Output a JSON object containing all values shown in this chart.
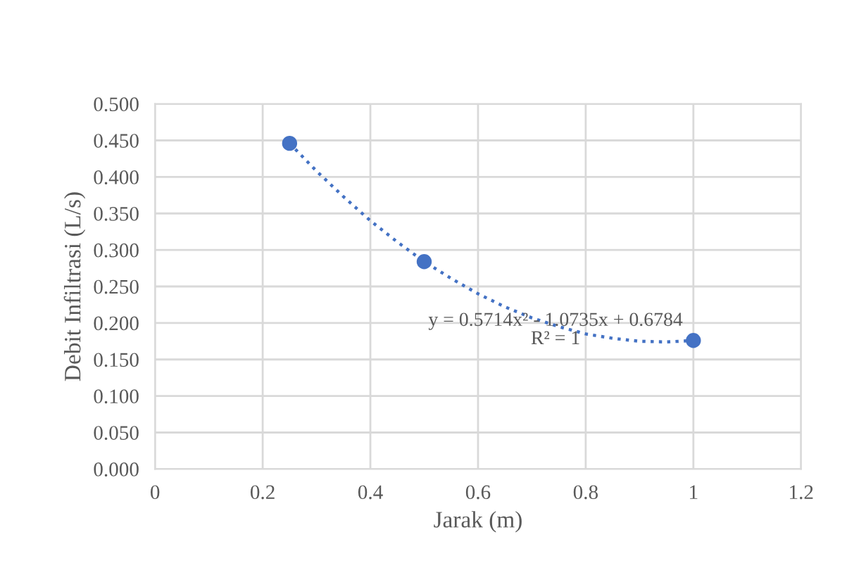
{
  "chart_data": {
    "type": "scatter",
    "xlabel": "Jarak (m)",
    "ylabel": "Debit Infiltrasi (L/s)",
    "annotations": [
      "y = 0.5714x² - 1.0735x + 0.6784",
      "R² = 1"
    ],
    "series": [
      {
        "color": "#4472c4",
        "marker": "circle",
        "x": [
          0.25,
          0.5,
          1
        ],
        "values": [
          0.446,
          0.284,
          0.176
        ]
      },
      {
        "type": "line",
        "color": "#4472c4",
        "line_style": "dotted",
        "marker": "none",
        "x": [
          0.25,
          0.3,
          0.35,
          0.4,
          0.45,
          0.5,
          0.55,
          0.6,
          0.65,
          0.7,
          0.75,
          0.8,
          0.85,
          0.9,
          0.95,
          1.0
        ],
        "values": [
          0.446,
          0.408,
          0.373,
          0.34,
          0.311,
          0.284,
          0.261,
          0.24,
          0.222,
          0.207,
          0.195,
          0.185,
          0.179,
          0.175,
          0.174,
          0.176
        ]
      }
    ],
    "xlim": [
      0,
      1.2
    ],
    "xticks": [
      0,
      0.2,
      0.4,
      0.6,
      0.8,
      1,
      1.2
    ],
    "ylim": [
      0,
      0.5
    ],
    "yticks": [
      {
        "value": 0,
        "label": "0.000"
      },
      {
        "value": 0.05,
        "label": "0.050"
      },
      {
        "value": 0.1,
        "label": "0.100"
      },
      {
        "value": 0.15,
        "label": "0.150"
      },
      {
        "value": 0.2,
        "label": "0.200"
      },
      {
        "value": 0.25,
        "label": "0.250"
      },
      {
        "value": 0.3,
        "label": "0.300"
      },
      {
        "value": 0.35,
        "label": "0.350"
      },
      {
        "value": 0.4,
        "label": "0.400"
      },
      {
        "value": 0.45,
        "label": "0.450"
      },
      {
        "value": 0.5,
        "label": "0.500"
      }
    ],
    "grid": true,
    "legend": false
  }
}
